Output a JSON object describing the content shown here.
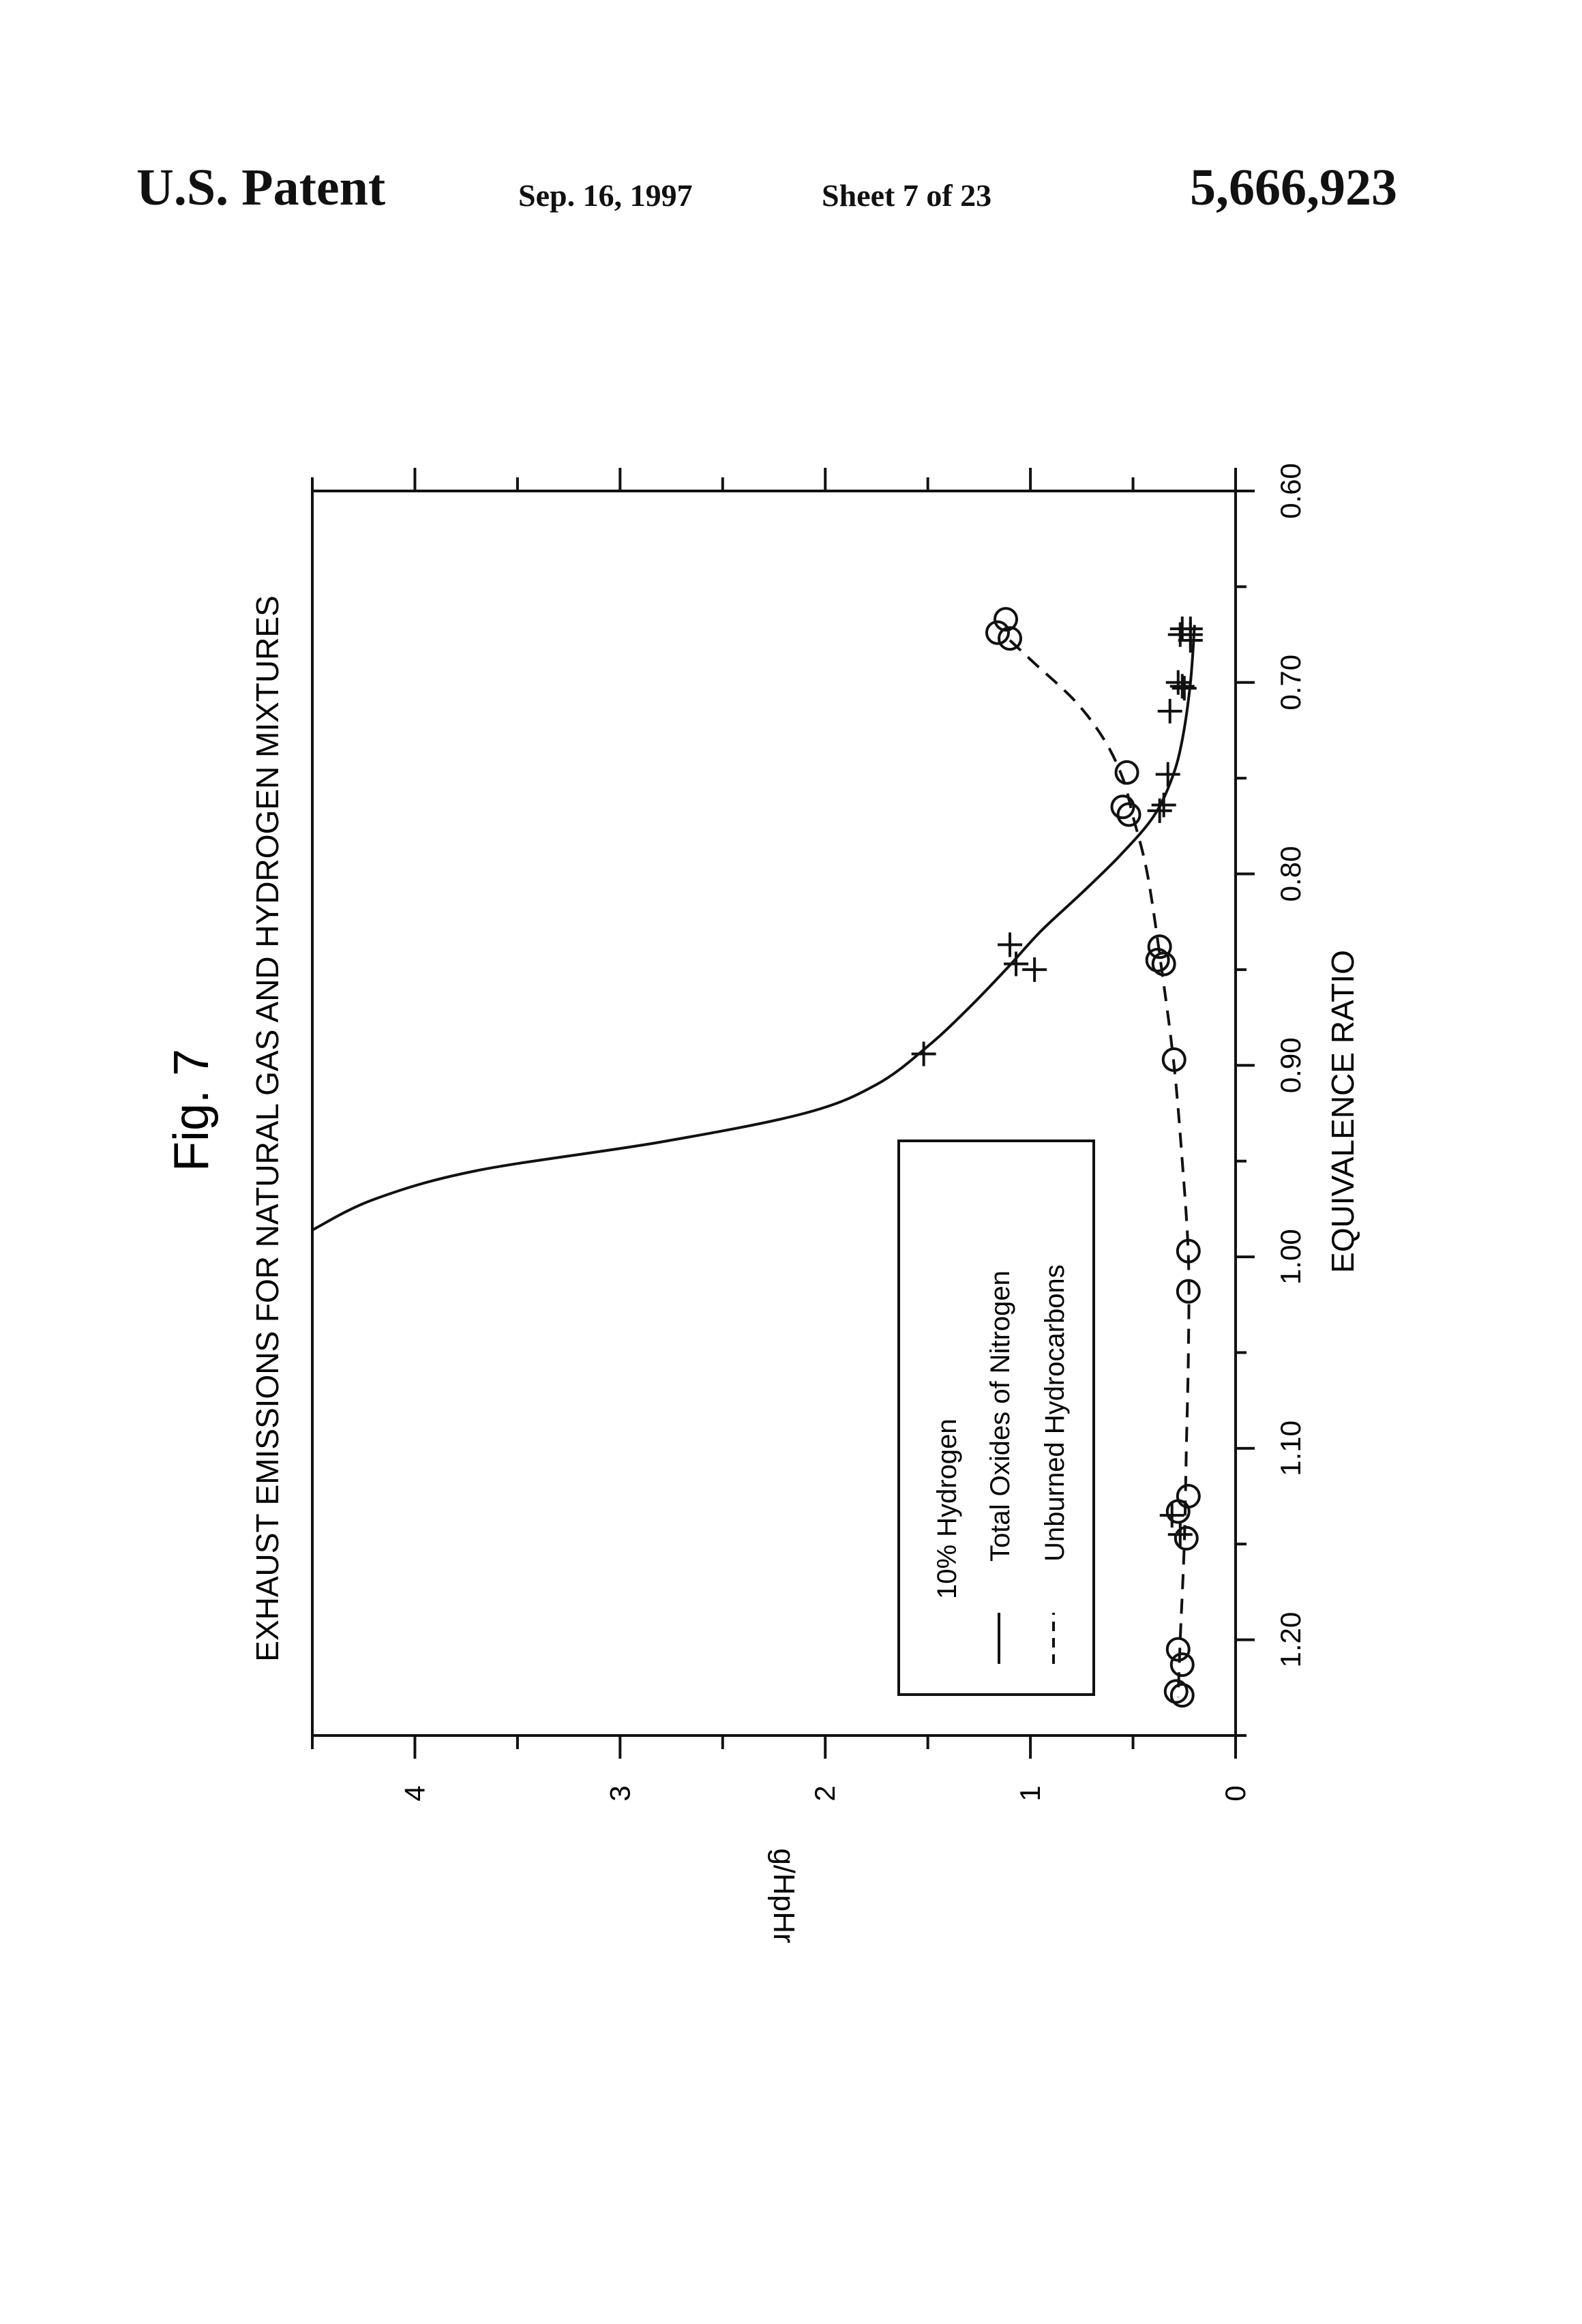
{
  "header": {
    "left": "U.S. Patent",
    "date": "Sep. 16, 1997",
    "sheet": "Sheet 7 of 23",
    "patent_number": "5,666,923"
  },
  "figure": {
    "label": "Fig. 7",
    "title": "EXHAUST EMISSIONS FOR NATURAL GAS AND HYDROGEN MIXTURES"
  },
  "chart_data": {
    "type": "scatter",
    "title": "EXHAUST EMISSIONS FOR NATURAL GAS AND HYDROGEN MIXTURES",
    "xlabel": "EQUIVALENCE RATIO",
    "ylabel": "g/HpHr",
    "xlim": [
      0.6,
      1.25
    ],
    "ylim": [
      0,
      4.5
    ],
    "x_ticks": [
      "0.60",
      "0.70",
      "0.80",
      "0.90",
      "1.00",
      "1.10",
      "1.20"
    ],
    "y_ticks": [
      "0",
      "1",
      "2",
      "3",
      "4"
    ],
    "legend": {
      "title": "10% Hydrogen",
      "position": "bottom-left",
      "entries": [
        "Total Oxides of Nitrogen",
        "Unburned Hydrocarbons"
      ]
    },
    "series": [
      {
        "name": "Total Oxides of Nitrogen",
        "marker": "plus",
        "line": "solid",
        "points": [
          [
            0.672,
            0.22
          ],
          [
            0.675,
            0.22
          ],
          [
            0.678,
            0.22
          ],
          [
            0.672,
            0.26
          ],
          [
            0.675,
            0.27
          ],
          [
            0.7,
            0.28
          ],
          [
            0.703,
            0.25
          ],
          [
            0.702,
            0.26
          ],
          [
            0.715,
            0.32
          ],
          [
            0.748,
            0.33
          ],
          [
            0.764,
            0.35
          ],
          [
            0.767,
            0.37
          ],
          [
            0.837,
            1.1
          ],
          [
            0.847,
            1.07
          ],
          [
            0.85,
            0.98
          ],
          [
            0.894,
            1.52
          ],
          [
            1.135,
            0.31
          ],
          [
            1.145,
            0.27
          ]
        ],
        "curve": [
          [
            0.67,
            0.2
          ],
          [
            0.7,
            0.22
          ],
          [
            0.73,
            0.26
          ],
          [
            0.75,
            0.31
          ],
          [
            0.77,
            0.4
          ],
          [
            0.79,
            0.56
          ],
          [
            0.81,
            0.75
          ],
          [
            0.83,
            0.95
          ],
          [
            0.85,
            1.12
          ],
          [
            0.87,
            1.3
          ],
          [
            0.89,
            1.5
          ],
          [
            0.91,
            1.75
          ],
          [
            0.925,
            2.1
          ],
          [
            0.94,
            2.8
          ],
          [
            0.955,
            3.7
          ],
          [
            0.97,
            4.2
          ],
          [
            0.986,
            4.5
          ]
        ]
      },
      {
        "name": "Unburned Hydrocarbons",
        "marker": "circle",
        "line": "dashed",
        "points": [
          [
            0.667,
            1.12
          ],
          [
            0.674,
            1.16
          ],
          [
            0.677,
            1.1
          ],
          [
            0.747,
            0.53
          ],
          [
            0.765,
            0.55
          ],
          [
            0.769,
            0.52
          ],
          [
            0.838,
            0.37
          ],
          [
            0.845,
            0.38
          ],
          [
            0.847,
            0.35
          ],
          [
            0.897,
            0.3
          ],
          [
            0.997,
            0.23
          ],
          [
            1.018,
            0.23
          ],
          [
            1.125,
            0.23
          ],
          [
            1.133,
            0.28
          ],
          [
            1.147,
            0.24
          ],
          [
            1.205,
            0.28
          ],
          [
            1.213,
            0.26
          ],
          [
            1.227,
            0.29
          ],
          [
            1.229,
            0.26
          ]
        ],
        "curve": [
          [
            0.678,
            1.1
          ],
          [
            0.69,
            0.98
          ],
          [
            0.71,
            0.78
          ],
          [
            0.73,
            0.64
          ],
          [
            0.75,
            0.55
          ],
          [
            0.77,
            0.5
          ],
          [
            0.8,
            0.43
          ],
          [
            0.85,
            0.36
          ],
          [
            0.9,
            0.3
          ],
          [
            0.95,
            0.26
          ],
          [
            1.0,
            0.23
          ],
          [
            1.05,
            0.23
          ],
          [
            1.1,
            0.24
          ],
          [
            1.15,
            0.25
          ],
          [
            1.2,
            0.27
          ],
          [
            1.23,
            0.28
          ]
        ]
      }
    ]
  }
}
